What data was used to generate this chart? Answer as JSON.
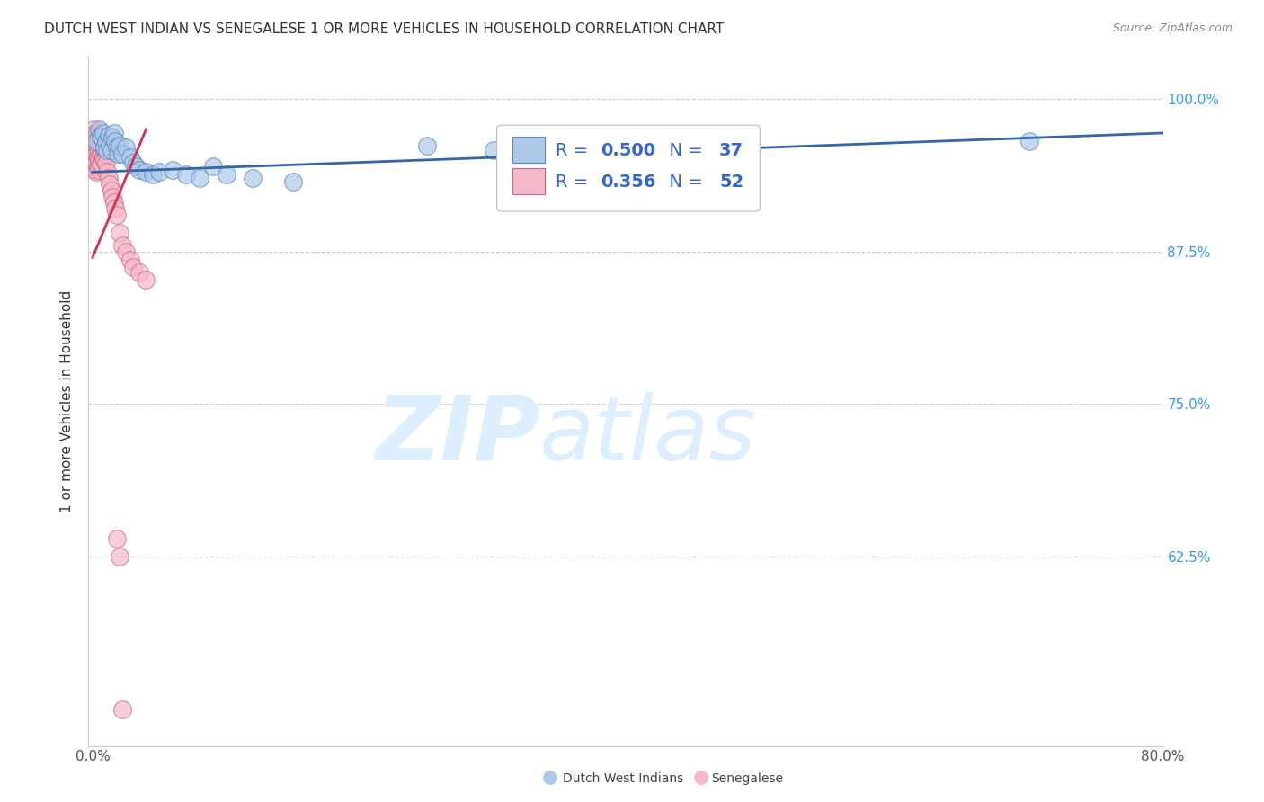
{
  "title": "DUTCH WEST INDIAN VS SENEGALESE 1 OR MORE VEHICLES IN HOUSEHOLD CORRELATION CHART",
  "source": "Source: ZipAtlas.com",
  "ylabel": "1 or more Vehicles in Household",
  "ytick_labels": [
    "100.0%",
    "87.5%",
    "75.0%",
    "62.5%"
  ],
  "ytick_values": [
    1.0,
    0.875,
    0.75,
    0.625
  ],
  "xmin": -0.003,
  "xmax": 0.8,
  "ymin": 0.47,
  "ymax": 1.035,
  "blue_R": "0.500",
  "blue_N": "37",
  "pink_R": "0.356",
  "pink_N": "52",
  "blue_scatter_x": [
    0.003,
    0.005,
    0.006,
    0.007,
    0.008,
    0.009,
    0.01,
    0.011,
    0.012,
    0.013,
    0.014,
    0.015,
    0.016,
    0.017,
    0.018,
    0.019,
    0.02,
    0.022,
    0.025,
    0.028,
    0.03,
    0.032,
    0.035,
    0.04,
    0.045,
    0.05,
    0.06,
    0.07,
    0.08,
    0.09,
    0.1,
    0.12,
    0.15,
    0.25,
    0.3,
    0.35,
    0.7
  ],
  "blue_scatter_y": [
    0.965,
    0.975,
    0.97,
    0.968,
    0.972,
    0.96,
    0.965,
    0.958,
    0.97,
    0.962,
    0.958,
    0.968,
    0.972,
    0.965,
    0.96,
    0.955,
    0.962,
    0.955,
    0.96,
    0.952,
    0.948,
    0.945,
    0.942,
    0.94,
    0.938,
    0.94,
    0.942,
    0.938,
    0.935,
    0.945,
    0.938,
    0.935,
    0.932,
    0.962,
    0.958,
    0.965,
    0.965
  ],
  "pink_scatter_x": [
    0.001,
    0.001,
    0.001,
    0.001,
    0.002,
    0.002,
    0.002,
    0.002,
    0.002,
    0.003,
    0.003,
    0.003,
    0.003,
    0.003,
    0.004,
    0.004,
    0.004,
    0.004,
    0.005,
    0.005,
    0.005,
    0.005,
    0.006,
    0.006,
    0.006,
    0.007,
    0.007,
    0.007,
    0.008,
    0.008,
    0.009,
    0.009,
    0.01,
    0.01,
    0.011,
    0.012,
    0.013,
    0.014,
    0.015,
    0.016,
    0.017,
    0.018,
    0.02,
    0.022,
    0.025,
    0.028,
    0.03,
    0.035,
    0.04,
    0.018,
    0.02,
    0.022
  ],
  "pink_scatter_y": [
    0.975,
    0.968,
    0.96,
    0.952,
    0.972,
    0.965,
    0.958,
    0.95,
    0.942,
    0.97,
    0.962,
    0.955,
    0.948,
    0.94,
    0.968,
    0.96,
    0.952,
    0.944,
    0.966,
    0.958,
    0.95,
    0.942,
    0.964,
    0.956,
    0.948,
    0.962,
    0.954,
    0.946,
    0.96,
    0.952,
    0.958,
    0.95,
    0.955,
    0.947,
    0.94,
    0.935,
    0.93,
    0.925,
    0.92,
    0.915,
    0.91,
    0.905,
    0.89,
    0.88,
    0.875,
    0.868,
    0.862,
    0.858,
    0.852,
    0.64,
    0.625,
    0.5
  ],
  "blue_line_x": [
    0.0,
    0.8
  ],
  "blue_line_y": [
    0.94,
    0.972
  ],
  "pink_line_x": [
    0.0,
    0.04
  ],
  "pink_line_y": [
    0.87,
    0.975
  ],
  "blue_color": "#aec8e8",
  "pink_color": "#f4b8c8",
  "blue_edge_color": "#5588bb",
  "pink_edge_color": "#cc6688",
  "blue_line_color": "#3366aa",
  "pink_line_color": "#cc3355",
  "watermark_zip": "ZIP",
  "watermark_atlas": "atlas",
  "watermark_color": "#ddeeff",
  "legend_text_color": "#3366cc",
  "legend_value_color": "#3366cc",
  "legend_N_color": "#3366cc"
}
